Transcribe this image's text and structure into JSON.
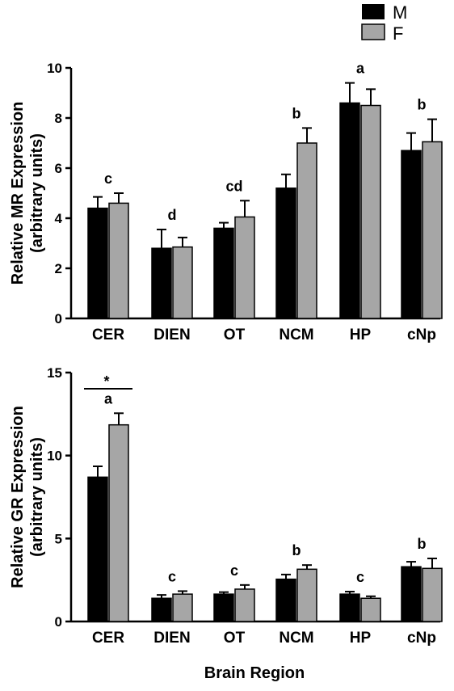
{
  "legend": {
    "items": [
      {
        "label": "M",
        "color": "#000000"
      },
      {
        "label": "F",
        "color": "#a6a6a6"
      }
    ]
  },
  "x_title": "Brain Region",
  "chart_data": [
    {
      "type": "bar",
      "categories": [
        "CER",
        "DIEN",
        "OT",
        "NCM",
        "HP",
        "cNp"
      ],
      "series": [
        {
          "name": "M",
          "values": [
            4.4,
            2.8,
            3.6,
            5.2,
            8.6,
            6.7
          ],
          "errors": [
            0.45,
            0.75,
            0.22,
            0.55,
            0.8,
            0.7
          ]
        },
        {
          "name": "F",
          "values": [
            4.6,
            2.85,
            4.05,
            7.0,
            8.5,
            7.05
          ],
          "errors": [
            0.4,
            0.38,
            0.65,
            0.6,
            0.65,
            0.9
          ]
        }
      ],
      "annotations": [
        "c",
        "d",
        "cd",
        "b",
        "a",
        "b"
      ],
      "ylabel_line1": "Relative MR Expression",
      "ylabel_line2": "(arbitrary units)",
      "ylim": [
        0,
        10
      ],
      "yticks": [
        0,
        2,
        4,
        6,
        8,
        10
      ]
    },
    {
      "type": "bar",
      "categories": [
        "CER",
        "DIEN",
        "OT",
        "NCM",
        "HP",
        "cNp"
      ],
      "series": [
        {
          "name": "M",
          "values": [
            8.7,
            1.4,
            1.65,
            2.55,
            1.65,
            3.3
          ],
          "errors": [
            0.65,
            0.2,
            0.12,
            0.28,
            0.15,
            0.3
          ]
        },
        {
          "name": "F",
          "values": [
            11.85,
            1.65,
            1.95,
            3.15,
            1.4,
            3.2
          ],
          "errors": [
            0.7,
            0.18,
            0.25,
            0.25,
            0.12,
            0.6
          ]
        }
      ],
      "annotations": [
        "a",
        "c",
        "c",
        "b",
        "c",
        "b"
      ],
      "significance": "*",
      "ylabel_line1": "Relative GR Expression",
      "ylabel_line2": "(arbitrary units)",
      "ylim": [
        0,
        15
      ],
      "yticks": [
        0,
        5,
        10,
        15
      ]
    }
  ]
}
